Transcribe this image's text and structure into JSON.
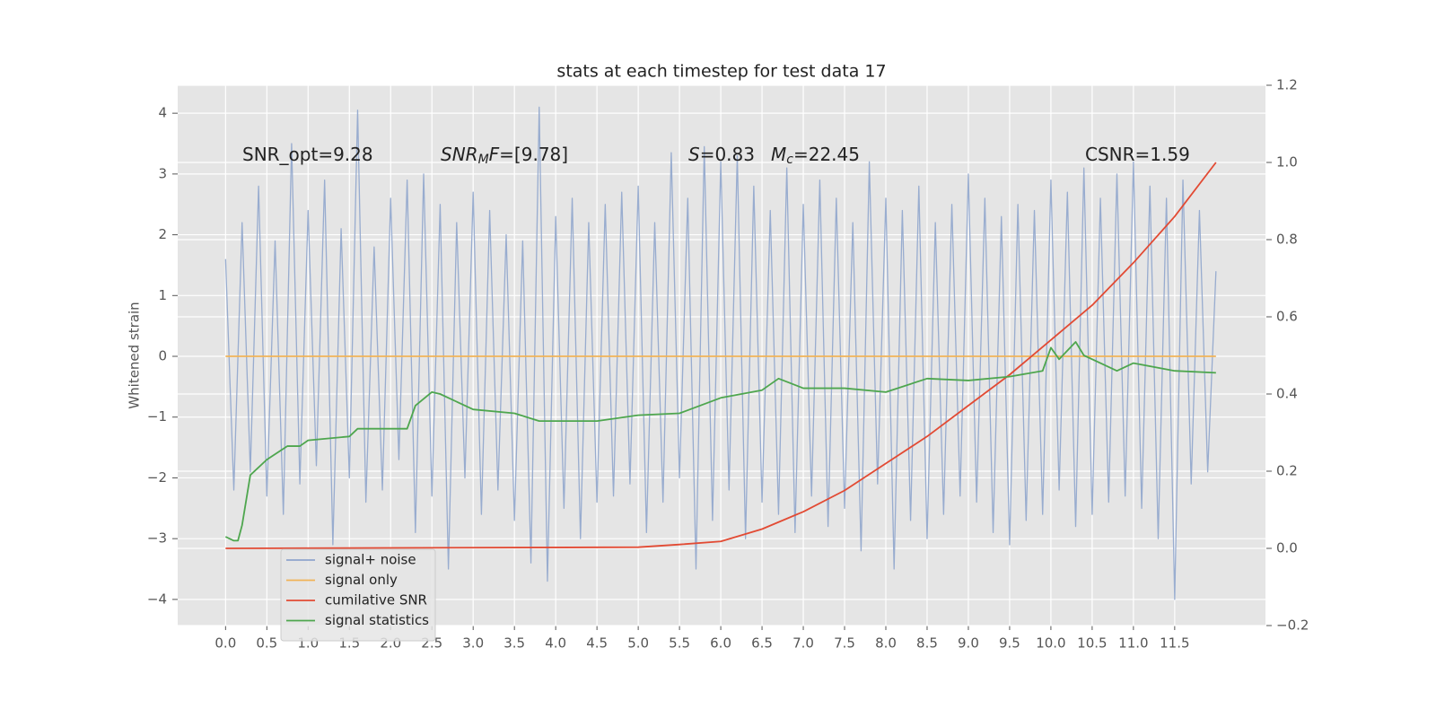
{
  "chart_data": {
    "type": "line",
    "title": "stats at each timestep for test data 17",
    "ylabel": "Whitened strain",
    "grid": true,
    "legend": "lower left",
    "xlim": [
      -0.58,
      12.6
    ],
    "ylim": [
      -4.43,
      4.46
    ],
    "y2lim": [
      -0.2,
      1.2
    ],
    "xticks": [
      {
        "value": 0,
        "label": "0.0"
      },
      0.5,
      {
        "value": 1,
        "label": "1.0"
      },
      1.5,
      {
        "value": 2,
        "label": "2.0"
      },
      2.5,
      {
        "value": 3,
        "label": "3.0"
      },
      3.5,
      {
        "value": 4,
        "label": "4.0"
      },
      4.5,
      {
        "value": 5,
        "label": "5.0"
      },
      5.5,
      {
        "value": 6,
        "label": "6.0"
      },
      6.5,
      {
        "value": 7,
        "label": "7.0"
      },
      7.5,
      {
        "value": 8,
        "label": "8.0"
      },
      8.5,
      {
        "value": 9,
        "label": "9.0"
      },
      9.5,
      {
        "value": 10,
        "label": "10.0"
      },
      10.5,
      {
        "value": 11,
        "label": "11.0"
      },
      11.5
    ],
    "yticks": [
      {
        "value": -4,
        "label": "−4"
      },
      {
        "value": -3,
        "label": "−3"
      },
      {
        "value": -2,
        "label": "−2"
      },
      {
        "value": -1,
        "label": "−1"
      },
      0,
      1,
      2,
      3,
      4
    ],
    "y2ticks": [
      {
        "value": -0.2,
        "label": "−0.2"
      },
      {
        "value": 0,
        "label": "0.0"
      },
      0.2,
      0.4,
      0.6,
      0.8,
      {
        "value": 1,
        "label": "1.0"
      },
      1.2
    ],
    "series": [
      {
        "name": "signal+ noise",
        "color": "#8fa5cc",
        "x": [
          0,
          0.1,
          0.2,
          0.3,
          0.4,
          0.5,
          0.6,
          0.7,
          0.8,
          0.9,
          1,
          1.1,
          1.2,
          1.3,
          1.4,
          1.5,
          1.6,
          1.7,
          1.8,
          1.9,
          2,
          2.1,
          2.2,
          2.3,
          2.4,
          2.5,
          2.6,
          2.7,
          2.8,
          2.9,
          3,
          3.1,
          3.2,
          3.3,
          3.4,
          3.5,
          3.6,
          3.7,
          3.8,
          3.9,
          4,
          4.1,
          4.2,
          4.3,
          4.4,
          4.5,
          4.6,
          4.7,
          4.8,
          4.9,
          5,
          5.1,
          5.2,
          5.3,
          5.4,
          5.5,
          5.6,
          5.7,
          5.8,
          5.9,
          6,
          6.1,
          6.2,
          6.3,
          6.4,
          6.5,
          6.6,
          6.7,
          6.8,
          6.9,
          7,
          7.1,
          7.2,
          7.3,
          7.4,
          7.5,
          7.6,
          7.7,
          7.8,
          7.9,
          8,
          8.1,
          8.2,
          8.3,
          8.4,
          8.5,
          8.6,
          8.7,
          8.8,
          8.9,
          9,
          9.1,
          9.2,
          9.3,
          9.4,
          9.5,
          9.6,
          9.7,
          9.8,
          9.9,
          10,
          10.1,
          10.2,
          10.3,
          10.4,
          10.5,
          10.6,
          10.7,
          10.8,
          10.9,
          11,
          11.1,
          11.2,
          11.3,
          11.4,
          11.5,
          11.6,
          11.7,
          11.8,
          11.9,
          12
        ],
        "values": [
          1.6,
          -2.2,
          2.2,
          -1.9,
          2.8,
          -2.3,
          1.9,
          -2.6,
          3.5,
          -2.1,
          2.4,
          -1.8,
          2.9,
          -3.1,
          2.1,
          -2.0,
          4.05,
          -2.4,
          1.8,
          -2.2,
          2.6,
          -1.7,
          2.9,
          -2.9,
          3.0,
          -2.3,
          2.5,
          -3.5,
          2.2,
          -2.0,
          2.7,
          -2.6,
          2.4,
          -2.2,
          2.0,
          -2.7,
          1.9,
          -3.4,
          4.1,
          -3.7,
          2.3,
          -2.5,
          2.6,
          -3.0,
          2.2,
          -2.4,
          2.5,
          -2.3,
          2.7,
          -2.1,
          2.8,
          -2.9,
          2.2,
          -2.4,
          3.35,
          -2.0,
          2.6,
          -3.5,
          3.45,
          -2.7,
          3.2,
          -2.2,
          3.3,
          -3.0,
          2.8,
          -2.4,
          2.4,
          -2.6,
          3.1,
          -2.9,
          2.5,
          -2.3,
          2.9,
          -2.8,
          2.6,
          -2.5,
          2.2,
          -3.2,
          3.2,
          -2.1,
          2.6,
          -3.5,
          2.4,
          -2.7,
          2.8,
          -3.0,
          2.2,
          -2.6,
          2.5,
          -2.3,
          3.0,
          -2.4,
          2.6,
          -2.9,
          2.3,
          -3.1,
          2.5,
          -2.7,
          2.4,
          -2.6,
          2.9,
          -2.2,
          2.7,
          -2.8,
          3.1,
          -2.6,
          2.6,
          -2.4,
          3.0,
          -2.3,
          3.2,
          -2.5,
          2.8,
          -3.0,
          2.6,
          -4.0,
          2.9,
          -2.1,
          2.4,
          -1.9,
          1.4
        ]
      },
      {
        "name": "signal only",
        "color": "#f0b357",
        "x": [
          0,
          12
        ],
        "values": [
          0,
          0
        ]
      },
      {
        "name": "cumilative SNR",
        "color": "#e24a33",
        "axis": "y2",
        "x": [
          0,
          5,
          5.5,
          6,
          6.5,
          7,
          7.5,
          8,
          8.5,
          9,
          9.5,
          10,
          10.5,
          11,
          11.5,
          12
        ],
        "values": [
          0,
          0.003,
          0.01,
          0.018,
          0.05,
          0.095,
          0.15,
          0.22,
          0.29,
          0.37,
          0.45,
          0.54,
          0.63,
          0.74,
          0.86,
          1.0
        ]
      },
      {
        "name": "signal statistics",
        "color": "#4ea64e",
        "axis": "y2",
        "x": [
          0,
          0.1,
          0.15,
          0.2,
          0.3,
          0.5,
          0.75,
          0.9,
          1,
          1.5,
          1.6,
          2,
          2.2,
          2.3,
          2.5,
          2.6,
          3,
          3.5,
          3.8,
          4,
          4.5,
          5,
          5.5,
          6,
          6.5,
          6.7,
          7,
          7.5,
          8,
          8.5,
          9,
          9.5,
          9.9,
          10,
          10.1,
          10.3,
          10.4,
          10.6,
          10.8,
          11,
          11.5,
          12
        ],
        "values": [
          0.03,
          0.02,
          0.02,
          0.06,
          0.19,
          0.23,
          0.265,
          0.265,
          0.28,
          0.29,
          0.31,
          0.31,
          0.31,
          0.37,
          0.405,
          0.4,
          0.36,
          0.35,
          0.33,
          0.33,
          0.33,
          0.345,
          0.35,
          0.39,
          0.41,
          0.44,
          0.415,
          0.415,
          0.405,
          0.44,
          0.435,
          0.445,
          0.46,
          0.52,
          0.49,
          0.535,
          0.5,
          0.48,
          0.46,
          0.48,
          0.46,
          0.455
        ]
      }
    ],
    "annotations": [
      {
        "runs": [
          {
            "text": "SNR_opt=9.28"
          }
        ]
      },
      {
        "runs": [
          {
            "text": "SNR",
            "italic": true
          },
          {
            "text": "M",
            "italic": true,
            "sub": true
          },
          {
            "text": "F",
            "italic": true
          },
          {
            "text": "=[9.78]"
          }
        ]
      },
      {
        "runs": [
          {
            "text": "S",
            "italic": true
          },
          {
            "text": "=0.83"
          }
        ]
      },
      {
        "runs": [
          {
            "text": "M",
            "italic": true
          },
          {
            "text": "c",
            "italic": true,
            "sub": true
          },
          {
            "text": "=22.45"
          }
        ]
      },
      {
        "runs": [
          {
            "text": "CSNR=1.59"
          }
        ]
      }
    ]
  }
}
